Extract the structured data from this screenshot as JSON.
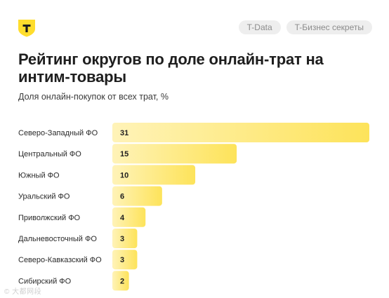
{
  "header": {
    "tags": [
      "T-Data",
      "T-Бизнес секреты"
    ]
  },
  "chart_data": {
    "type": "bar",
    "orientation": "horizontal",
    "title": "Рейтинг округов по доле онлайн-трат на интим-товары",
    "subtitle": "Доля онлайн-покупок от всех трат, %",
    "categories": [
      "Северо-Западный ФО",
      "Центральный ФО",
      "Южный ФО",
      "Уральский ФО",
      "Приволжский ФО",
      "Дальневосточный ФО",
      "Северо-Кавказский ФО",
      "Сибирский ФО"
    ],
    "values": [
      31,
      15,
      10,
      6,
      4,
      3,
      3,
      2
    ],
    "xlim": [
      0,
      31
    ],
    "grid": false,
    "legend": "none",
    "colors": {
      "bar_left": "#fff3b8",
      "bar_right": "#fde35a"
    }
  },
  "watermark": "© 大都网段"
}
